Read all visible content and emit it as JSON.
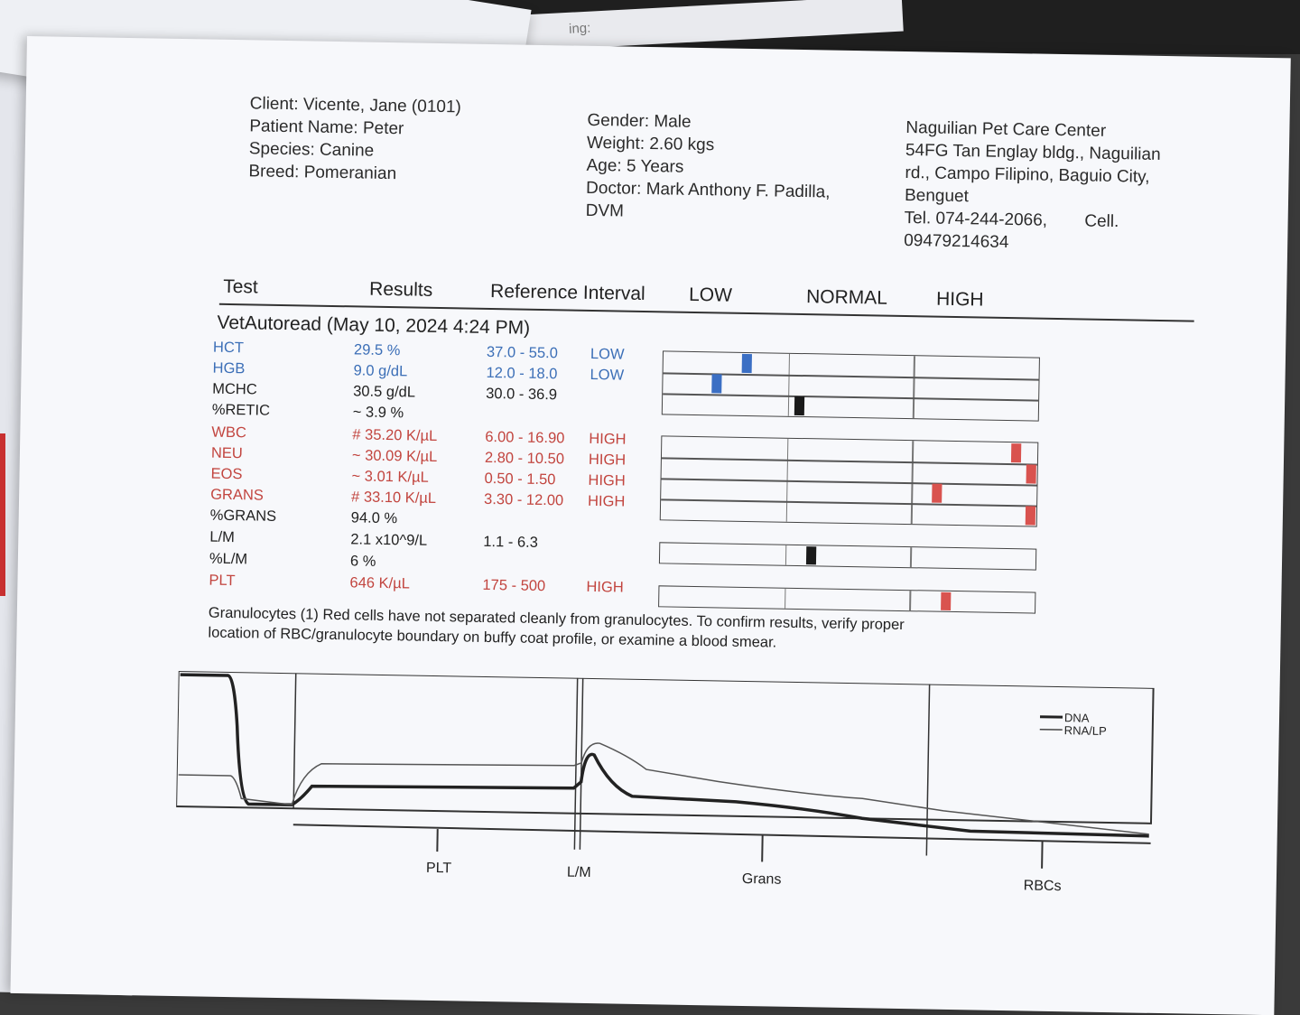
{
  "background": {
    "note_text": "ing:",
    "curl_mark": "19"
  },
  "header": {
    "client": "Client: Vicente, Jane (0101)",
    "patient": "Patient Name: Peter",
    "species": "Species: Canine",
    "breed": "Breed: Pomeranian",
    "gender": "Gender: Male",
    "weight": "Weight: 2.60 kgs",
    "age": "Age: 5 Years",
    "doctor_line1": "Doctor: Mark Anthony F. Padilla,",
    "doctor_line2": "DVM",
    "clinic_name": "Naguilian Pet Care Center",
    "clinic_addr1": "54FG Tan Englay bldg., Naguilian",
    "clinic_addr2": "rd., Campo Filipino, Baguio City,",
    "clinic_addr3": "Benguet",
    "clinic_tel": "Tel. 074-244-2066,",
    "clinic_cell_label": "Cell.",
    "clinic_cell": "09479214634"
  },
  "columns": {
    "test": "Test",
    "results": "Results",
    "reference": "Reference Interval",
    "low": "LOW",
    "normal": "NORMAL",
    "high": "HIGH"
  },
  "run_title": "VetAutoread (May 10, 2024 4:24 PM)",
  "colors": {
    "low": "#3c6fb7",
    "high": "#c2453f",
    "normal": "#222222",
    "marker_low": "#3b6fc4",
    "marker_high": "#d9534f",
    "marker_normal": "#1a1a1a"
  },
  "tests": [
    {
      "name": "HCT",
      "result": "29.5 %",
      "ref": "37.0 - 55.0",
      "flag": "LOW",
      "status": "low",
      "gauge_pos": 0.21
    },
    {
      "name": "HGB",
      "result": "9.0 g/dL",
      "ref": "12.0 - 18.0",
      "flag": "LOW",
      "status": "low",
      "gauge_pos": 0.13
    },
    {
      "name": "MCHC",
      "result": "30.5 g/dL",
      "ref": "30.0 - 36.9",
      "flag": "",
      "status": "normal",
      "gauge_pos": 0.35
    },
    {
      "name": "%RETIC",
      "result": "~ 3.9 %",
      "ref": "",
      "flag": "",
      "status": "normal",
      "gauge_pos": null
    },
    {
      "name": "WBC",
      "result": "# 35.20 K/µL",
      "ref": "6.00 - 16.90",
      "flag": "HIGH",
      "status": "high",
      "gauge_pos": 0.93
    },
    {
      "name": "NEU",
      "result": "~ 30.09 K/µL",
      "ref": "2.80 - 10.50",
      "flag": "HIGH",
      "status": "high",
      "gauge_pos": 0.97
    },
    {
      "name": "EOS",
      "result": "~ 3.01 K/µL",
      "ref": "0.50 - 1.50",
      "flag": "HIGH",
      "status": "high",
      "gauge_pos": 0.72
    },
    {
      "name": "GRANS",
      "result": "# 33.10 K/µL",
      "ref": "3.30 - 12.00",
      "flag": "HIGH",
      "status": "high",
      "gauge_pos": 0.98
    },
    {
      "name": "%GRANS",
      "result": "94.0 %",
      "ref": "",
      "flag": "",
      "status": "normal",
      "gauge_pos": null
    },
    {
      "name": "L/M",
      "result": "2.1 x10^9/L",
      "ref": "1.1 - 6.3",
      "flag": "",
      "status": "normal",
      "gauge_pos": 0.39
    },
    {
      "name": "%L/M",
      "result": "6 %",
      "ref": "",
      "flag": "",
      "status": "normal",
      "gauge_pos": null
    },
    {
      "name": "PLT",
      "result": "646 K/µL",
      "ref": "175 - 500",
      "flag": "HIGH",
      "status": "high",
      "gauge_pos": 0.75
    }
  ],
  "comment_line1": "Granulocytes (1)  Red cells have not separated cleanly from granulocytes.  To confirm  results, verify proper",
  "comment_line2": "location of RBC/granulocyte boundary on buffy  coat profile, or examine a blood smear.",
  "profile": {
    "legend": [
      "DNA",
      "RNA/LP"
    ],
    "zone_labels": [
      "PLT",
      "L/M",
      "Grans",
      "RBCs"
    ]
  }
}
